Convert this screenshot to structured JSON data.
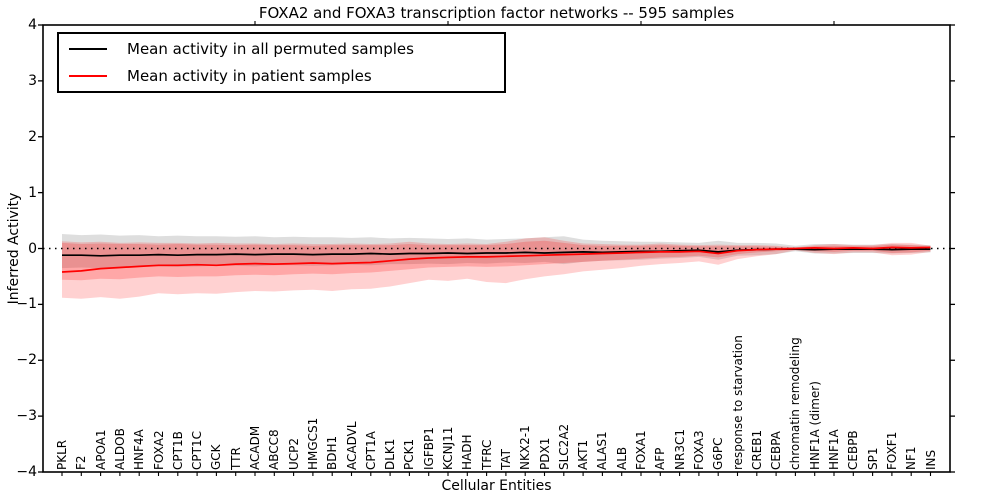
{
  "chart_data": {
    "type": "area",
    "title": "FOXA2 and FOXA3 transcription factor networks -- 595 samples",
    "xlabel": "Cellular Entities",
    "ylabel": "Inferred Activity",
    "ylim": [
      -4,
      4
    ],
    "ytick_labels": [
      "4",
      "3",
      "2",
      "1",
      "0",
      "−1",
      "−2",
      "−3",
      "−4"
    ],
    "ytick_values": [
      4,
      3,
      2,
      1,
      0,
      -1,
      -2,
      -3,
      -4
    ],
    "grid": "off",
    "zero_line": {
      "y": 0,
      "style": "dotted",
      "color": "#000000"
    },
    "legend_position": "upper left",
    "top_tick_indices": [
      10,
      20,
      30,
      40
    ],
    "categories": [
      "PKLR",
      "F2",
      "APOA1",
      "ALDOB",
      "HNF4A",
      "FOXA2",
      "CPT1B",
      "CPT1C",
      "GCK",
      "TTR",
      "ACADM",
      "ABCC8",
      "UCP2",
      "HMGCS1",
      "BDH1",
      "ACADVL",
      "CPT1A",
      "DLK1",
      "PCK1",
      "IGFBP1",
      "KCNJ11",
      "HADH",
      "TFRC",
      "TAT",
      "NKX2-1",
      "PDX1",
      "SLC2A2",
      "AKT1",
      "ALAS1",
      "ALB",
      "FOXA1",
      "AFP",
      "NR3C1",
      "FOXA3",
      "G6PC",
      "response to starvation",
      "CREB1",
      "CEBPA",
      "chromatin remodeling",
      "HNF1A (dimer)",
      "HNF1A",
      "CEBPB",
      "SP1",
      "FOXF1",
      "NF1",
      "INS"
    ],
    "series": [
      {
        "name": "Mean activity in all permuted samples",
        "color": "#000000",
        "values": [
          -0.12,
          -0.12,
          -0.13,
          -0.12,
          -0.12,
          -0.11,
          -0.12,
          -0.11,
          -0.11,
          -0.1,
          -0.11,
          -0.1,
          -0.1,
          -0.11,
          -0.1,
          -0.1,
          -0.09,
          -0.1,
          -0.09,
          -0.09,
          -0.08,
          -0.09,
          -0.08,
          -0.08,
          -0.07,
          -0.08,
          -0.07,
          -0.06,
          -0.07,
          -0.06,
          -0.05,
          -0.05,
          -0.04,
          -0.03,
          -0.06,
          -0.03,
          -0.02,
          -0.01,
          -0.01,
          -0.02,
          -0.01,
          -0.01,
          -0.01,
          -0.02,
          -0.01,
          -0.01
        ]
      },
      {
        "name": "Mean activity in patient samples",
        "color": "#ff0000",
        "values": [
          -0.42,
          -0.4,
          -0.36,
          -0.34,
          -0.32,
          -0.3,
          -0.3,
          -0.29,
          -0.3,
          -0.28,
          -0.27,
          -0.28,
          -0.27,
          -0.26,
          -0.27,
          -0.26,
          -0.25,
          -0.22,
          -0.19,
          -0.17,
          -0.16,
          -0.15,
          -0.15,
          -0.14,
          -0.13,
          -0.12,
          -0.11,
          -0.1,
          -0.09,
          -0.08,
          -0.07,
          -0.06,
          -0.06,
          -0.05,
          -0.09,
          -0.04,
          -0.02,
          -0.01,
          0.0,
          0.01,
          0.0,
          0.01,
          0.0,
          0.02,
          0.01,
          0.02
        ]
      }
    ],
    "bands": [
      {
        "name": "permuted-samples-range",
        "color": "#000000",
        "opacity": 0.13,
        "upper": [
          0.26,
          0.24,
          0.25,
          0.23,
          0.24,
          0.22,
          0.23,
          0.22,
          0.22,
          0.21,
          0.22,
          0.2,
          0.21,
          0.2,
          0.2,
          0.19,
          0.2,
          0.18,
          0.19,
          0.18,
          0.17,
          0.18,
          0.16,
          0.17,
          0.18,
          0.2,
          0.22,
          0.16,
          0.14,
          0.13,
          0.12,
          0.12,
          0.11,
          0.1,
          0.14,
          0.1,
          0.1,
          0.09,
          0.05,
          0.08,
          0.08,
          0.07,
          0.07,
          0.08,
          0.07,
          0.06
        ],
        "lower": [
          -0.35,
          -0.34,
          -0.35,
          -0.33,
          -0.33,
          -0.32,
          -0.33,
          -0.32,
          -0.31,
          -0.31,
          -0.32,
          -0.3,
          -0.3,
          -0.31,
          -0.3,
          -0.29,
          -0.3,
          -0.28,
          -0.28,
          -0.27,
          -0.28,
          -0.26,
          -0.27,
          -0.25,
          -0.26,
          -0.24,
          -0.28,
          -0.24,
          -0.22,
          -0.21,
          -0.2,
          -0.18,
          -0.17,
          -0.15,
          -0.2,
          -0.13,
          -0.12,
          -0.1,
          -0.05,
          -0.09,
          -0.09,
          -0.08,
          -0.08,
          -0.09,
          -0.08,
          -0.07
        ]
      },
      {
        "name": "patient-samples-outer-range",
        "color": "#ff0000",
        "opacity": 0.18,
        "upper": [
          0.13,
          0.11,
          0.12,
          0.1,
          0.11,
          0.1,
          0.1,
          0.09,
          0.1,
          0.09,
          0.09,
          0.08,
          0.09,
          0.08,
          0.08,
          0.09,
          0.08,
          0.09,
          0.12,
          0.09,
          0.08,
          0.09,
          0.08,
          0.12,
          0.18,
          0.2,
          0.14,
          0.09,
          0.08,
          0.07,
          0.07,
          0.09,
          0.07,
          0.06,
          0.07,
          0.06,
          0.06,
          0.05,
          0.02,
          0.06,
          0.08,
          0.06,
          0.06,
          0.1,
          0.1,
          0.05
        ],
        "lower": [
          -0.88,
          -0.9,
          -0.87,
          -0.9,
          -0.86,
          -0.8,
          -0.82,
          -0.8,
          -0.81,
          -0.78,
          -0.76,
          -0.77,
          -0.75,
          -0.74,
          -0.76,
          -0.73,
          -0.72,
          -0.68,
          -0.62,
          -0.56,
          -0.58,
          -0.54,
          -0.6,
          -0.62,
          -0.55,
          -0.5,
          -0.46,
          -0.41,
          -0.38,
          -0.35,
          -0.31,
          -0.28,
          -0.26,
          -0.23,
          -0.29,
          -0.19,
          -0.14,
          -0.1,
          -0.03,
          -0.08,
          -0.1,
          -0.07,
          -0.07,
          -0.12,
          -0.11,
          -0.06
        ]
      },
      {
        "name": "patient-samples-inner-range",
        "color": "#ff0000",
        "opacity": 0.2,
        "upper": [
          0.1,
          0.08,
          0.09,
          0.08,
          0.08,
          0.07,
          0.08,
          0.07,
          0.07,
          0.06,
          0.07,
          0.06,
          0.06,
          0.05,
          0.06,
          0.06,
          0.06,
          0.06,
          0.08,
          0.06,
          0.06,
          0.06,
          0.06,
          0.08,
          0.12,
          0.14,
          0.1,
          0.06,
          0.05,
          0.05,
          0.05,
          0.06,
          0.05,
          0.04,
          0.04,
          0.04,
          0.04,
          0.03,
          0.01,
          0.04,
          0.05,
          0.04,
          0.04,
          0.07,
          0.06,
          0.03
        ],
        "lower": [
          -0.56,
          -0.57,
          -0.54,
          -0.55,
          -0.52,
          -0.5,
          -0.51,
          -0.5,
          -0.5,
          -0.48,
          -0.47,
          -0.48,
          -0.46,
          -0.45,
          -0.46,
          -0.44,
          -0.43,
          -0.4,
          -0.37,
          -0.34,
          -0.33,
          -0.32,
          -0.33,
          -0.32,
          -0.3,
          -0.28,
          -0.26,
          -0.24,
          -0.22,
          -0.2,
          -0.18,
          -0.16,
          -0.15,
          -0.13,
          -0.16,
          -0.1,
          -0.07,
          -0.05,
          -0.02,
          -0.05,
          -0.06,
          -0.04,
          -0.04,
          -0.08,
          -0.07,
          -0.04
        ]
      }
    ]
  }
}
